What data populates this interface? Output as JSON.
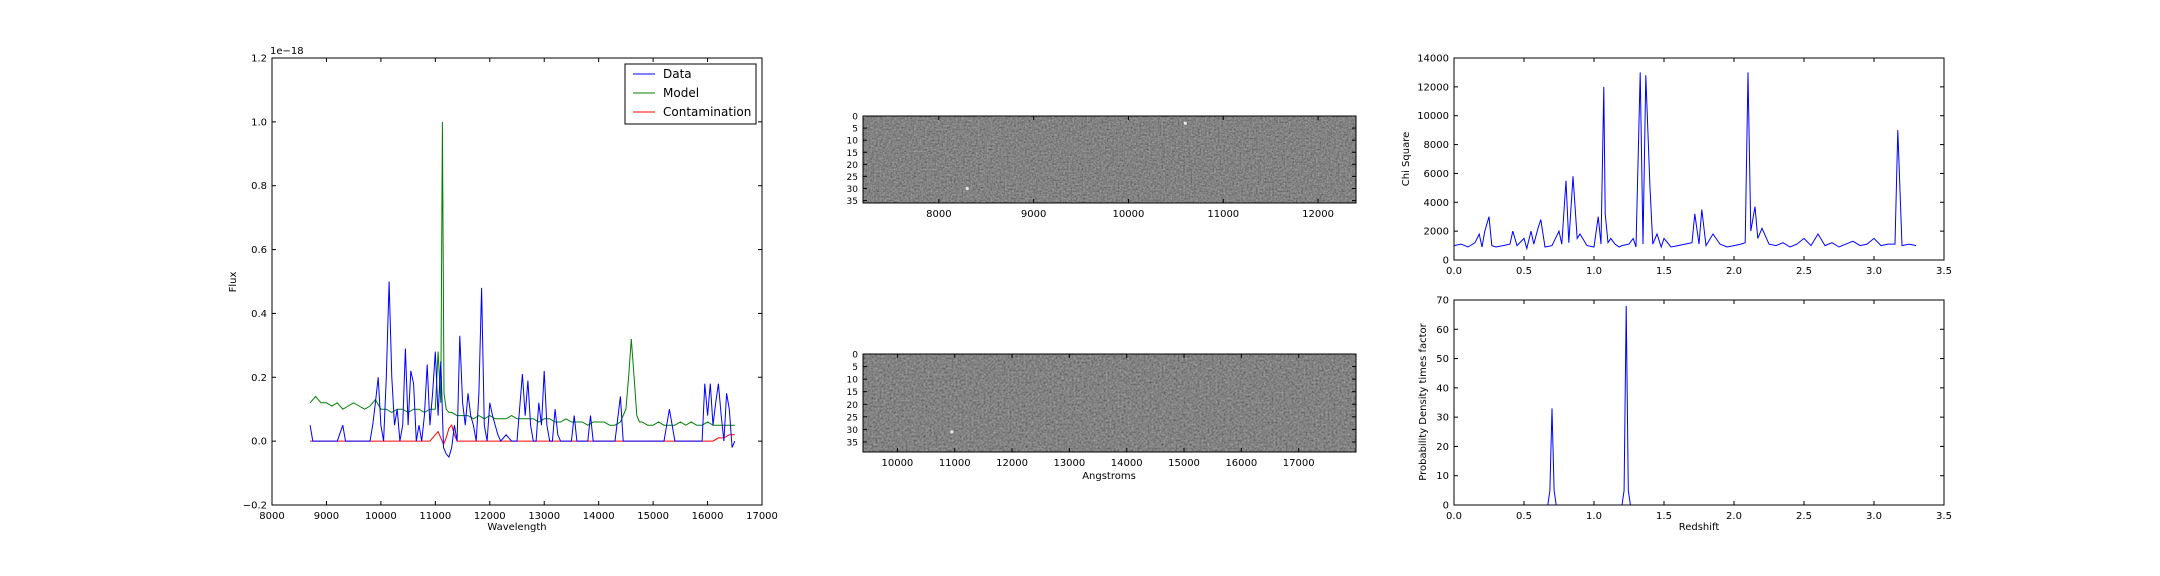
{
  "chart_data": [
    {
      "id": "spectrum",
      "type": "line",
      "xlabel": "Wavelength",
      "ylabel": "Flux",
      "xlim": [
        8000,
        17000
      ],
      "ylim": [
        -0.2,
        1.2
      ],
      "xticks": [
        8000,
        9000,
        10000,
        11000,
        12000,
        13000,
        14000,
        15000,
        16000,
        17000
      ],
      "yticks": [
        -0.2,
        0.0,
        0.2,
        0.4,
        0.6,
        0.8,
        1.0,
        1.2
      ],
      "ytick_labels": [
        "−0.2",
        "0.0",
        "0.2",
        "0.4",
        "0.6",
        "0.8",
        "1.0",
        "1.2"
      ],
      "offset_text": "1e−18",
      "legend_position": "top-right",
      "series": [
        {
          "name": "Data",
          "color": "#0000ff",
          "x": [
            8700,
            8750,
            8800,
            9200,
            9300,
            9350,
            9400,
            9800,
            9850,
            9900,
            9950,
            10000,
            10050,
            10100,
            10150,
            10200,
            10250,
            10300,
            10350,
            10400,
            10450,
            10500,
            10550,
            10600,
            10650,
            10700,
            10750,
            10800,
            10850,
            10900,
            10950,
            11000,
            11050,
            11100,
            11150,
            11200,
            11250,
            11300,
            11350,
            11400,
            11450,
            11500,
            11550,
            11600,
            11650,
            11700,
            11750,
            11800,
            11850,
            11900,
            11950,
            12000,
            12050,
            12100,
            12150,
            12200,
            12300,
            12400,
            12500,
            12600,
            12650,
            12700,
            12750,
            12800,
            12850,
            12900,
            12950,
            13000,
            13050,
            13100,
            13150,
            13200,
            13250,
            13300,
            13400,
            13500,
            13550,
            13600,
            13650,
            13700,
            13750,
            13800,
            13850,
            13900,
            13950,
            14000,
            14050,
            14100,
            14150,
            14200,
            14300,
            14400,
            14450,
            14500,
            14550,
            14600,
            14650,
            14700,
            14750,
            14800,
            14900,
            15000,
            15100,
            15200,
            15300,
            15400,
            15450,
            15500,
            15550,
            15600,
            15700,
            15800,
            15900,
            15950,
            16000,
            16050,
            16100,
            16150,
            16200,
            16250,
            16300,
            16350,
            16400,
            16450,
            16500
          ],
          "values": [
            0.05,
            0.0,
            0.0,
            0.0,
            0.05,
            0.0,
            0.0,
            0.0,
            0.05,
            0.12,
            0.2,
            0.05,
            0.0,
            0.2,
            0.5,
            0.2,
            0.05,
            0.1,
            0.0,
            0.05,
            0.29,
            0.05,
            0.22,
            0.18,
            0.0,
            0.05,
            0.0,
            0.08,
            0.24,
            0.05,
            0.15,
            0.28,
            0.08,
            0.25,
            -0.02,
            -0.04,
            -0.05,
            -0.02,
            0.05,
            0.0,
            0.33,
            0.12,
            0.05,
            0.15,
            0.08,
            0.05,
            0.0,
            0.15,
            0.48,
            0.05,
            0.0,
            0.12,
            0.08,
            0.05,
            0.02,
            0.0,
            0.02,
            0.0,
            0.0,
            0.21,
            0.08,
            0.19,
            0.05,
            0.0,
            0.0,
            0.12,
            0.05,
            0.22,
            0.05,
            0.0,
            0.0,
            0.1,
            0.02,
            0.0,
            0.0,
            0.0,
            0.08,
            0.0,
            0.0,
            0.0,
            0.0,
            0.0,
            0.08,
            0.0,
            0.0,
            0.0,
            0.0,
            0.0,
            0.0,
            0.0,
            0.0,
            0.14,
            0.0,
            0.0,
            0.0,
            0.0,
            0.0,
            0.0,
            0.0,
            0.0,
            0.0,
            0.0,
            0.0,
            0.0,
            0.1,
            0.0,
            0.0,
            0.0,
            0.0,
            0.0,
            0.0,
            0.0,
            0.0,
            0.18,
            0.08,
            0.18,
            0.05,
            0.12,
            0.18,
            0.08,
            0.0,
            0.15,
            0.1,
            -0.02,
            0.0
          ],
          "values_note": "fluxes in units of 1e-18"
        },
        {
          "name": "Model",
          "color": "#008000",
          "x": [
            8700,
            8800,
            8900,
            9000,
            9100,
            9200,
            9300,
            9400,
            9500,
            9600,
            9700,
            9800,
            9900,
            10000,
            10100,
            10200,
            10300,
            10400,
            10500,
            10600,
            10700,
            10800,
            10900,
            11000,
            11050,
            11100,
            11130,
            11160,
            11200,
            11250,
            11300,
            11400,
            11500,
            11600,
            11700,
            11800,
            11900,
            12000,
            12100,
            12200,
            12300,
            12400,
            12500,
            12600,
            12700,
            12800,
            12900,
            13000,
            13100,
            13200,
            13300,
            13400,
            13500,
            13600,
            13700,
            13800,
            13900,
            14000,
            14100,
            14200,
            14300,
            14400,
            14500,
            14550,
            14600,
            14650,
            14700,
            14750,
            14800,
            14900,
            15000,
            15100,
            15200,
            15300,
            15400,
            15500,
            15600,
            15700,
            15800,
            15900,
            16000,
            16100,
            16200,
            16300,
            16400,
            16500
          ],
          "values": [
            0.12,
            0.14,
            0.12,
            0.12,
            0.11,
            0.12,
            0.1,
            0.11,
            0.12,
            0.11,
            0.1,
            0.11,
            0.13,
            0.1,
            0.1,
            0.09,
            0.1,
            0.1,
            0.09,
            0.1,
            0.1,
            0.09,
            0.1,
            0.1,
            0.28,
            0.12,
            1.0,
            0.15,
            0.1,
            0.09,
            0.09,
            0.08,
            0.08,
            0.08,
            0.07,
            0.08,
            0.07,
            0.08,
            0.07,
            0.07,
            0.07,
            0.08,
            0.07,
            0.07,
            0.07,
            0.07,
            0.06,
            0.07,
            0.07,
            0.06,
            0.06,
            0.07,
            0.06,
            0.06,
            0.06,
            0.05,
            0.06,
            0.06,
            0.06,
            0.05,
            0.05,
            0.06,
            0.1,
            0.2,
            0.32,
            0.2,
            0.08,
            0.06,
            0.06,
            0.05,
            0.05,
            0.06,
            0.05,
            0.05,
            0.05,
            0.06,
            0.05,
            0.06,
            0.05,
            0.05,
            0.06,
            0.05,
            0.05,
            0.05,
            0.05,
            0.05
          ]
        },
        {
          "name": "Contamination",
          "color": "#ff0000",
          "x": [
            8700,
            10900,
            10950,
            11000,
            11050,
            11100,
            11150,
            11200,
            11250,
            11300,
            11350,
            11400,
            16000,
            16100,
            16200,
            16300,
            16400,
            16500
          ],
          "values": [
            0.0,
            0.0,
            0.01,
            0.02,
            0.03,
            0.01,
            -0.01,
            0.01,
            0.04,
            0.05,
            0.02,
            0.0,
            0.0,
            0.0,
            0.01,
            0.01,
            0.02,
            0.02
          ]
        }
      ]
    },
    {
      "id": "stamp-1",
      "type": "heatmap",
      "xlim": [
        7200,
        12400
      ],
      "ylim": [
        36,
        0
      ],
      "xticks": [
        8000,
        9000,
        10000,
        11000,
        12000
      ],
      "yticks": [
        0,
        5,
        10,
        15,
        20,
        25,
        30,
        35
      ],
      "colormap": "gray",
      "bright_pixels": [
        [
          10600,
          3
        ],
        [
          8300,
          30
        ]
      ]
    },
    {
      "id": "stamp-2",
      "type": "heatmap",
      "xlabel": "Angstroms",
      "xlim": [
        9400,
        18000
      ],
      "ylim": [
        39,
        0
      ],
      "xticks": [
        10000,
        11000,
        12000,
        13000,
        14000,
        15000,
        16000,
        17000
      ],
      "yticks": [
        0,
        5,
        10,
        15,
        20,
        25,
        30,
        35
      ],
      "colormap": "gray",
      "bright_pixels": [
        [
          10950,
          31
        ]
      ]
    },
    {
      "id": "chisq",
      "type": "line",
      "ylabel": "Chi Square",
      "xlim": [
        0.0,
        3.5
      ],
      "ylim": [
        0,
        14000
      ],
      "xticks": [
        0.0,
        0.5,
        1.0,
        1.5,
        2.0,
        2.5,
        3.0,
        3.5
      ],
      "xtick_labels": [
        "0.0",
        "0.5",
        "1.0",
        "1.5",
        "2.0",
        "2.5",
        "3.0",
        "3.5"
      ],
      "yticks": [
        0,
        2000,
        4000,
        6000,
        8000,
        10000,
        12000,
        14000
      ],
      "series": [
        {
          "color": "#0000ff",
          "x": [
            0.0,
            0.05,
            0.1,
            0.15,
            0.18,
            0.2,
            0.22,
            0.25,
            0.27,
            0.3,
            0.35,
            0.4,
            0.42,
            0.45,
            0.5,
            0.52,
            0.55,
            0.57,
            0.6,
            0.62,
            0.65,
            0.7,
            0.75,
            0.77,
            0.8,
            0.82,
            0.85,
            0.88,
            0.9,
            0.95,
            1.0,
            1.03,
            1.05,
            1.07,
            1.08,
            1.1,
            1.12,
            1.15,
            1.18,
            1.2,
            1.25,
            1.28,
            1.3,
            1.33,
            1.35,
            1.37,
            1.4,
            1.42,
            1.45,
            1.48,
            1.5,
            1.55,
            1.6,
            1.65,
            1.7,
            1.72,
            1.75,
            1.77,
            1.8,
            1.85,
            1.9,
            1.95,
            2.0,
            2.05,
            2.08,
            2.1,
            2.12,
            2.15,
            2.17,
            2.2,
            2.25,
            2.3,
            2.35,
            2.4,
            2.45,
            2.5,
            2.55,
            2.6,
            2.65,
            2.7,
            2.75,
            2.8,
            2.85,
            2.9,
            2.95,
            3.0,
            3.05,
            3.1,
            3.15,
            3.17,
            3.2,
            3.25,
            3.3
          ],
          "values": [
            1000,
            1100,
            900,
            1200,
            1800,
            900,
            2000,
            3000,
            1000,
            900,
            1000,
            1100,
            2000,
            1000,
            1500,
            800,
            2000,
            1100,
            2200,
            2800,
            900,
            1000,
            2000,
            1100,
            5500,
            1200,
            5800,
            1500,
            1800,
            1000,
            900,
            3000,
            1100,
            12000,
            3200,
            1200,
            1500,
            1100,
            900,
            1000,
            1100,
            1500,
            900,
            13000,
            1100,
            12800,
            5000,
            1100,
            1800,
            900,
            1500,
            900,
            1000,
            1100,
            1200,
            3200,
            1100,
            3500,
            1000,
            1800,
            1100,
            900,
            1000,
            1100,
            1200,
            13000,
            2000,
            3700,
            1500,
            2200,
            1100,
            1000,
            1200,
            900,
            1100,
            1500,
            1000,
            1800,
            1000,
            1200,
            900,
            1100,
            1300,
            1000,
            1100,
            1500,
            1000,
            1100,
            1100,
            9000,
            1000,
            1100,
            1000
          ]
        }
      ]
    },
    {
      "id": "pdf",
      "type": "line",
      "xlabel": "Redshift",
      "ylabel": "Probability Density times factor",
      "xlim": [
        0.0,
        3.5
      ],
      "ylim": [
        0,
        70
      ],
      "xticks": [
        0.0,
        0.5,
        1.0,
        1.5,
        2.0,
        2.5,
        3.0,
        3.5
      ],
      "xtick_labels": [
        "0.0",
        "0.5",
        "1.0",
        "1.5",
        "2.0",
        "2.5",
        "3.0",
        "3.5"
      ],
      "yticks": [
        0,
        10,
        20,
        30,
        40,
        50,
        60,
        70
      ],
      "series": [
        {
          "color": "#0000ff",
          "x": [
            0.0,
            0.67,
            0.685,
            0.7,
            0.715,
            0.73,
            1.2,
            1.215,
            1.23,
            1.245,
            1.26,
            3.3
          ],
          "values": [
            0,
            0,
            5,
            33,
            5,
            0,
            0,
            5,
            68,
            5,
            0,
            0
          ]
        }
      ]
    }
  ]
}
